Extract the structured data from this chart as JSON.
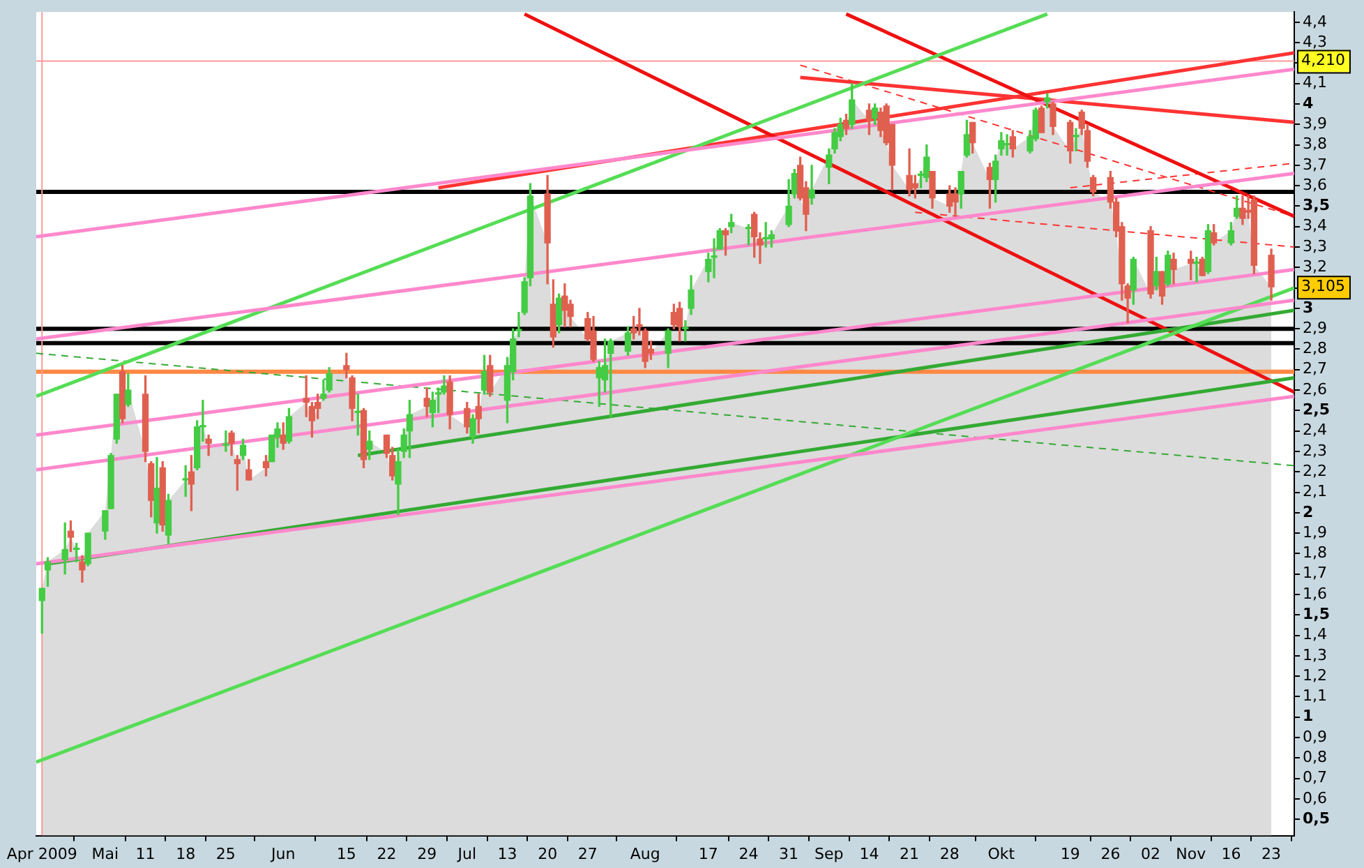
{
  "chart_data": {
    "type": "candlestick",
    "x": [
      "2009-04-23",
      "2009-04-24",
      "2009-04-27",
      "2009-04-28",
      "2009-04-29",
      "2009-04-30",
      "2009-05-01",
      "2009-05-04",
      "2009-05-05",
      "2009-05-06",
      "2009-05-07",
      "2009-05-08",
      "2009-05-11",
      "2009-05-12",
      "2009-05-13",
      "2009-05-14",
      "2009-05-15",
      "2009-05-18",
      "2009-05-19",
      "2009-05-20",
      "2009-05-21",
      "2009-05-22",
      "2009-05-25",
      "2009-05-26",
      "2009-05-27",
      "2009-05-28",
      "2009-05-29",
      "2009-06-01",
      "2009-06-02",
      "2009-06-03",
      "2009-06-04",
      "2009-06-05",
      "2009-06-08",
      "2009-06-09",
      "2009-06-10",
      "2009-06-11",
      "2009-06-12",
      "2009-06-15",
      "2009-06-16",
      "2009-06-17",
      "2009-06-18",
      "2009-06-19",
      "2009-06-22",
      "2009-06-23",
      "2009-06-24",
      "2009-06-25",
      "2009-06-26",
      "2009-06-29",
      "2009-06-30",
      "2009-07-01",
      "2009-07-02",
      "2009-07-03",
      "2009-07-06",
      "2009-07-07",
      "2009-07-08",
      "2009-07-09",
      "2009-07-10",
      "2009-07-13",
      "2009-07-14",
      "2009-07-15",
      "2009-07-16",
      "2009-07-17",
      "2009-07-20",
      "2009-07-21",
      "2009-07-22",
      "2009-07-23",
      "2009-07-24",
      "2009-07-27",
      "2009-07-28",
      "2009-07-29",
      "2009-07-30",
      "2009-07-31",
      "2009-08-03",
      "2009-08-04",
      "2009-08-05",
      "2009-08-06",
      "2009-08-07",
      "2009-08-10",
      "2009-08-11",
      "2009-08-12",
      "2009-08-13",
      "2009-08-14",
      "2009-08-17",
      "2009-08-18",
      "2009-08-19",
      "2009-08-20",
      "2009-08-21",
      "2009-08-24",
      "2009-08-25",
      "2009-08-26",
      "2009-08-27",
      "2009-08-28",
      "2009-08-31",
      "2009-09-01",
      "2009-09-02",
      "2009-09-03",
      "2009-09-04",
      "2009-09-07",
      "2009-09-08",
      "2009-09-09",
      "2009-09-10",
      "2009-09-11",
      "2009-09-14",
      "2009-09-15",
      "2009-09-16",
      "2009-09-17",
      "2009-09-18",
      "2009-09-21",
      "2009-09-22",
      "2009-09-23",
      "2009-09-24",
      "2009-09-25",
      "2009-09-28",
      "2009-09-29",
      "2009-09-30",
      "2009-10-01",
      "2009-10-02",
      "2009-10-05",
      "2009-10-06",
      "2009-10-07",
      "2009-10-08",
      "2009-10-09",
      "2009-10-12",
      "2009-10-13",
      "2009-10-14",
      "2009-10-15",
      "2009-10-16",
      "2009-10-19",
      "2009-10-20",
      "2009-10-21",
      "2009-10-22",
      "2009-10-23",
      "2009-10-26",
      "2009-10-27",
      "2009-10-28",
      "2009-10-29",
      "2009-10-30",
      "2009-11-02",
      "2009-11-03",
      "2009-11-04",
      "2009-11-05",
      "2009-11-06",
      "2009-11-09",
      "2009-11-10",
      "2009-11-11",
      "2009-11-12",
      "2009-11-13",
      "2009-11-16",
      "2009-11-17",
      "2009-11-18",
      "2009-11-19",
      "2009-11-20",
      "2009-11-23"
    ],
    "ohlc": [
      [
        1.57,
        1.63,
        1.41,
        1.63
      ],
      [
        1.72,
        1.78,
        1.64,
        1.76
      ],
      [
        1.77,
        1.95,
        1.7,
        1.82
      ],
      [
        1.91,
        1.96,
        1.81,
        1.88
      ],
      [
        1.82,
        1.85,
        1.76,
        1.82
      ],
      [
        1.76,
        1.79,
        1.66,
        1.72
      ],
      [
        1.75,
        1.9,
        1.74,
        1.9
      ],
      [
        1.91,
        2.01,
        1.87,
        2.01
      ],
      [
        2.02,
        2.29,
        2.02,
        2.28
      ],
      [
        2.36,
        2.58,
        2.34,
        2.58
      ],
      [
        2.69,
        2.72,
        2.44,
        2.46
      ],
      [
        2.53,
        2.68,
        2.52,
        2.6
      ],
      [
        2.58,
        2.67,
        2.25,
        2.3
      ],
      [
        2.24,
        2.25,
        1.98,
        2.06
      ],
      [
        1.95,
        2.27,
        1.9,
        2.12
      ],
      [
        2.22,
        2.25,
        1.91,
        1.94
      ],
      [
        1.89,
        2.09,
        1.85,
        2.06
      ],
      [
        2.16,
        2.23,
        2.08,
        2.16
      ],
      [
        2.2,
        2.28,
        2.01,
        2.14
      ],
      [
        2.22,
        2.45,
        2.21,
        2.42
      ],
      [
        2.42,
        2.55,
        2.35,
        2.42
      ],
      [
        2.36,
        2.38,
        2.28,
        2.34
      ],
      [
        2.33,
        2.4,
        2.3,
        2.33
      ],
      [
        2.39,
        2.4,
        2.28,
        2.34
      ],
      [
        2.26,
        2.28,
        2.11,
        2.24
      ],
      [
        2.28,
        2.36,
        2.26,
        2.33
      ],
      [
        2.21,
        2.26,
        2.16,
        2.16
      ],
      [
        2.25,
        2.28,
        2.18,
        2.22
      ],
      [
        2.25,
        2.38,
        2.25,
        2.38
      ],
      [
        2.37,
        2.44,
        2.32,
        2.41
      ],
      [
        2.38,
        2.44,
        2.31,
        2.34
      ],
      [
        2.35,
        2.51,
        2.34,
        2.47
      ],
      [
        2.56,
        2.67,
        2.47,
        2.54
      ],
      [
        2.52,
        2.54,
        2.37,
        2.45
      ],
      [
        2.54,
        2.58,
        2.46,
        2.51
      ],
      [
        2.56,
        2.65,
        2.55,
        2.58
      ],
      [
        2.6,
        2.71,
        2.59,
        2.68
      ],
      [
        2.72,
        2.78,
        2.66,
        2.7
      ],
      [
        2.66,
        2.67,
        2.45,
        2.51
      ],
      [
        2.49,
        2.58,
        2.38,
        2.49
      ],
      [
        2.5,
        2.51,
        2.22,
        2.26
      ],
      [
        2.31,
        2.4,
        2.26,
        2.35
      ],
      [
        2.38,
        2.38,
        2.27,
        2.29
      ],
      [
        2.28,
        2.32,
        2.16,
        2.18
      ],
      [
        2.14,
        2.31,
        1.99,
        2.25
      ],
      [
        2.3,
        2.41,
        2.27,
        2.38
      ],
      [
        2.4,
        2.55,
        2.27,
        2.48
      ],
      [
        2.56,
        2.61,
        2.47,
        2.52
      ],
      [
        2.49,
        2.59,
        2.42,
        2.55
      ],
      [
        2.58,
        2.61,
        2.49,
        2.58
      ],
      [
        2.59,
        2.67,
        2.58,
        2.62
      ],
      [
        2.64,
        2.67,
        2.41,
        2.48
      ],
      [
        2.51,
        2.54,
        2.39,
        2.42
      ],
      [
        2.37,
        2.48,
        2.34,
        2.46
      ],
      [
        2.52,
        2.58,
        2.39,
        2.46
      ],
      [
        2.6,
        2.77,
        2.58,
        2.69
      ],
      [
        2.72,
        2.77,
        2.57,
        2.59
      ],
      [
        2.55,
        2.76,
        2.44,
        2.72
      ],
      [
        2.69,
        2.9,
        2.65,
        2.85
      ],
      [
        2.89,
        2.98,
        2.86,
        2.89
      ],
      [
        2.98,
        3.15,
        2.97,
        3.13
      ],
      [
        3.15,
        3.61,
        3.11,
        3.55
      ],
      [
        3.56,
        3.65,
        3.12,
        3.32
      ],
      [
        3.02,
        3.14,
        2.81,
        2.86
      ],
      [
        2.92,
        3.07,
        2.88,
        3.05
      ],
      [
        3.06,
        3.12,
        2.91,
        2.99
      ],
      [
        3.02,
        3.04,
        2.91,
        2.96
      ],
      [
        2.95,
        2.98,
        2.84,
        2.85
      ],
      [
        2.89,
        2.96,
        2.74,
        2.75
      ],
      [
        2.66,
        2.74,
        2.52,
        2.71
      ],
      [
        2.65,
        2.85,
        2.59,
        2.72
      ],
      [
        2.78,
        2.85,
        2.47,
        2.84
      ],
      [
        2.79,
        2.91,
        2.77,
        2.88
      ],
      [
        2.9,
        2.96,
        2.85,
        2.88
      ],
      [
        2.92,
        3.0,
        2.87,
        2.91
      ],
      [
        2.89,
        2.9,
        2.71,
        2.74
      ],
      [
        2.8,
        2.84,
        2.75,
        2.78
      ],
      [
        2.78,
        2.9,
        2.71,
        2.89
      ],
      [
        2.98,
        3.02,
        2.9,
        2.92
      ],
      [
        3.0,
        3.03,
        2.84,
        2.91
      ],
      [
        2.9,
        2.94,
        2.84,
        2.9
      ],
      [
        3.0,
        3.16,
        2.97,
        3.09
      ],
      [
        3.18,
        3.27,
        3.13,
        3.24
      ],
      [
        3.25,
        3.34,
        3.15,
        3.25
      ],
      [
        3.29,
        3.39,
        3.29,
        3.38
      ],
      [
        3.38,
        3.39,
        3.26,
        3.36
      ],
      [
        3.4,
        3.46,
        3.37,
        3.42
      ],
      [
        3.39,
        3.41,
        3.31,
        3.39
      ],
      [
        3.46,
        3.47,
        3.25,
        3.35
      ],
      [
        3.34,
        3.37,
        3.22,
        3.31
      ],
      [
        3.34,
        3.42,
        3.3,
        3.34
      ],
      [
        3.34,
        3.38,
        3.3,
        3.36
      ],
      [
        3.41,
        3.63,
        3.4,
        3.5
      ],
      [
        3.56,
        3.68,
        3.54,
        3.66
      ],
      [
        3.7,
        3.74,
        3.53,
        3.54
      ],
      [
        3.59,
        3.62,
        3.38,
        3.46
      ],
      [
        3.54,
        3.7,
        3.51,
        3.58
      ],
      [
        3.69,
        3.78,
        3.61,
        3.75
      ],
      [
        3.78,
        3.88,
        3.76,
        3.86
      ],
      [
        3.84,
        3.93,
        3.82,
        3.9
      ],
      [
        3.92,
        3.95,
        3.85,
        3.88
      ],
      [
        3.9,
        4.1,
        3.88,
        4.02
      ],
      [
        3.97,
        4.0,
        3.85,
        3.92
      ],
      [
        3.93,
        4.0,
        3.9,
        3.98
      ],
      [
        3.96,
        3.98,
        3.84,
        3.87
      ],
      [
        3.99,
        4.0,
        3.8,
        3.81
      ],
      [
        3.9,
        3.9,
        3.58,
        3.7
      ],
      [
        3.65,
        3.78,
        3.55,
        3.58
      ],
      [
        3.61,
        3.65,
        3.54,
        3.59
      ],
      [
        3.65,
        3.67,
        3.59,
        3.65
      ],
      [
        3.64,
        3.8,
        3.62,
        3.74
      ],
      [
        3.67,
        3.67,
        3.49,
        3.54
      ],
      [
        3.56,
        3.6,
        3.47,
        3.5
      ],
      [
        3.56,
        3.59,
        3.45,
        3.52
      ],
      [
        3.56,
        3.67,
        3.49,
        3.67
      ],
      [
        3.75,
        3.92,
        3.74,
        3.85
      ],
      [
        3.91,
        3.91,
        3.76,
        3.81
      ],
      [
        3.69,
        3.71,
        3.49,
        3.63
      ],
      [
        3.63,
        3.75,
        3.52,
        3.72
      ],
      [
        3.78,
        3.86,
        3.75,
        3.82
      ],
      [
        3.8,
        3.85,
        3.75,
        3.8
      ],
      [
        3.84,
        3.87,
        3.74,
        3.78
      ],
      [
        3.77,
        3.87,
        3.76,
        3.84
      ],
      [
        3.83,
        3.98,
        3.82,
        3.97
      ],
      [
        3.98,
        3.99,
        3.86,
        3.86
      ],
      [
        4.01,
        4.05,
        3.98,
        4.03
      ],
      [
        4.0,
        4.01,
        3.85,
        3.89
      ],
      [
        3.91,
        3.92,
        3.71,
        3.77
      ],
      [
        3.84,
        3.88,
        3.77,
        3.84
      ],
      [
        3.96,
        3.97,
        3.85,
        3.88
      ],
      [
        3.87,
        3.9,
        3.69,
        3.72
      ],
      [
        3.64,
        3.65,
        3.55,
        3.57
      ],
      [
        3.64,
        3.67,
        3.49,
        3.52
      ],
      [
        3.52,
        3.54,
        3.35,
        3.38
      ],
      [
        3.4,
        3.42,
        3.04,
        3.12
      ],
      [
        3.11,
        3.12,
        2.93,
        3.05
      ],
      [
        3.09,
        3.25,
        3.02,
        3.24
      ],
      [
        3.38,
        3.4,
        3.05,
        3.07
      ],
      [
        3.11,
        3.25,
        3.09,
        3.18
      ],
      [
        3.18,
        3.18,
        3.02,
        3.06
      ],
      [
        3.12,
        3.28,
        3.11,
        3.26
      ],
      [
        3.24,
        3.27,
        3.12,
        3.19
      ],
      [
        3.24,
        3.28,
        3.14,
        3.22
      ],
      [
        3.22,
        3.25,
        3.13,
        3.22
      ],
      [
        3.24,
        3.25,
        3.16,
        3.16
      ],
      [
        3.18,
        3.41,
        3.17,
        3.38
      ],
      [
        3.37,
        3.41,
        3.31,
        3.32
      ],
      [
        3.32,
        3.42,
        3.31,
        3.38
      ],
      [
        3.45,
        3.55,
        3.44,
        3.49
      ],
      [
        3.49,
        3.55,
        3.41,
        3.44
      ],
      [
        3.48,
        3.55,
        3.44,
        3.47
      ],
      [
        3.53,
        3.55,
        3.17,
        3.21
      ],
      [
        3.26,
        3.29,
        3.04,
        3.105
      ]
    ],
    "colors": [
      "#44cc44",
      "#44cc44",
      "#44cc44",
      "#e06050",
      "#44cc44",
      "#e06050",
      "#44cc44",
      "#44cc44",
      "#44cc44",
      "#44cc44",
      "#e06050",
      "#44cc44",
      "#e06050",
      "#e06050",
      "#44cc44",
      "#e06050",
      "#44cc44",
      "#44cc44",
      "#e06050",
      "#44cc44",
      "#44cc44",
      "#e06050",
      "#44cc44",
      "#e06050",
      "#e06050",
      "#44cc44",
      "#e06050",
      "#e06050",
      "#44cc44",
      "#44cc44",
      "#e06050",
      "#44cc44",
      "#e06050",
      "#e06050",
      "#e06050",
      "#44cc44",
      "#44cc44",
      "#e06050",
      "#e06050",
      "#44cc44",
      "#e06050",
      "#44cc44",
      "#e06050",
      "#e06050",
      "#44cc44",
      "#44cc44",
      "#44cc44",
      "#e06050",
      "#44cc44",
      "#44cc44",
      "#44cc44",
      "#e06050",
      "#e06050",
      "#44cc44",
      "#e06050",
      "#44cc44",
      "#e06050",
      "#44cc44",
      "#44cc44",
      "#44cc44",
      "#44cc44",
      "#44cc44",
      "#e06050",
      "#e06050",
      "#44cc44",
      "#e06050",
      "#e06050",
      "#e06050",
      "#e06050",
      "#44cc44",
      "#44cc44",
      "#44cc44",
      "#44cc44",
      "#e06050",
      "#e06050",
      "#e06050",
      "#e06050",
      "#44cc44",
      "#e06050",
      "#e06050",
      "#44cc44",
      "#44cc44",
      "#44cc44",
      "#44cc44",
      "#44cc44",
      "#e06050",
      "#44cc44",
      "#44cc44",
      "#e06050",
      "#e06050",
      "#44cc44",
      "#44cc44",
      "#44cc44",
      "#44cc44",
      "#e06050",
      "#e06050",
      "#44cc44",
      "#44cc44",
      "#44cc44",
      "#44cc44",
      "#e06050",
      "#44cc44",
      "#e06050",
      "#44cc44",
      "#e06050",
      "#e06050",
      "#e06050",
      "#e06050",
      "#e06050",
      "#44cc44",
      "#44cc44",
      "#e06050",
      "#e06050",
      "#e06050",
      "#44cc44",
      "#44cc44",
      "#e06050",
      "#e06050",
      "#44cc44",
      "#44cc44",
      "#44cc44",
      "#e06050",
      "#44cc44",
      "#44cc44",
      "#e06050",
      "#44cc44",
      "#e06050",
      "#e06050",
      "#44cc44",
      "#e06050",
      "#e06050",
      "#e06050",
      "#e06050",
      "#e06050",
      "#e06050",
      "#e06050",
      "#44cc44",
      "#e06050",
      "#44cc44",
      "#e06050",
      "#44cc44",
      "#e06050",
      "#e06050",
      "#44cc44",
      "#e06050",
      "#44cc44",
      "#e06050",
      "#44cc44",
      "#44cc44",
      "#e06050",
      "#e06050",
      "#e06050",
      "#e06050"
    ],
    "series": [
      {
        "type": "area",
        "color": "#dcdcdc",
        "values": [
          1.63,
          1.76,
          1.82,
          1.88,
          1.82,
          1.72,
          1.9,
          2.01,
          2.28,
          2.58,
          2.46,
          2.6,
          2.3,
          2.06,
          2.12,
          1.94,
          2.06,
          2.16,
          2.14,
          2.42,
          2.42,
          2.34,
          2.33,
          2.34,
          2.24,
          2.33,
          2.16,
          2.22,
          2.38,
          2.41,
          2.34,
          2.47,
          2.54,
          2.45,
          2.51,
          2.58,
          2.68,
          2.7,
          2.51,
          2.49,
          2.26,
          2.35,
          2.29,
          2.18,
          2.25,
          2.38,
          2.48,
          2.52,
          2.55,
          2.58,
          2.62,
          2.48,
          2.42,
          2.46,
          2.46,
          2.69,
          2.59,
          2.72,
          2.85,
          2.89,
          3.13,
          3.55,
          3.32,
          2.86,
          3.05,
          2.99,
          2.96,
          2.85,
          2.75,
          2.71,
          2.72,
          2.84,
          2.88,
          2.88,
          2.91,
          2.74,
          2.78,
          2.89,
          2.92,
          2.91,
          2.9,
          3.09,
          3.24,
          3.25,
          3.38,
          3.36,
          3.42,
          3.39,
          3.35,
          3.31,
          3.34,
          3.36,
          3.5,
          3.66,
          3.54,
          3.46,
          3.58,
          3.75,
          3.86,
          3.9,
          3.88,
          4.02,
          3.92,
          3.98,
          3.87,
          3.81,
          3.7,
          3.58,
          3.59,
          3.65,
          3.74,
          3.54,
          3.5,
          3.52,
          3.67,
          3.85,
          3.81,
          3.63,
          3.72,
          3.82,
          3.8,
          3.78,
          3.84,
          3.97,
          3.86,
          4.03,
          3.89,
          3.77,
          3.84,
          3.88,
          3.72,
          3.57,
          3.52,
          3.38,
          3.12,
          3.05,
          3.24,
          3.07,
          3.18,
          3.06,
          3.26,
          3.19,
          3.22,
          3.22,
          3.16,
          3.38,
          3.32,
          3.38,
          3.49,
          3.44,
          3.47,
          3.21,
          3.105
        ]
      },
      {
        "type": "line",
        "color": "#ff88cc",
        "x": [
          "2009-04-22",
          "2009-11-27"
        ],
        "values": [
          3.35,
          4.17
        ]
      },
      {
        "type": "line",
        "color": "#ff88cc",
        "x": [
          "2009-04-22",
          "2009-11-27"
        ],
        "values": [
          2.38,
          3.19
        ]
      },
      {
        "type": "line",
        "color": "#ff88cc",
        "x": [
          "2009-04-22",
          "2009-11-27"
        ],
        "values": [
          2.21,
          3.04
        ]
      },
      {
        "type": "line",
        "color": "#ff88cc",
        "x": [
          "2009-04-22",
          "2009-11-27"
        ],
        "values": [
          1.75,
          2.57
        ]
      },
      {
        "type": "line",
        "color": "#ff88cc",
        "x": [
          "2009-04-22",
          "2009-11-27"
        ],
        "values": [
          2.85,
          3.66
        ]
      },
      {
        "type": "line",
        "color": "#55dd55",
        "x": [
          "2009-04-22",
          "2009-10-15"
        ],
        "values": [
          2.57,
          4.44
        ]
      },
      {
        "type": "line",
        "color": "#55dd55",
        "x": [
          "2009-04-22",
          "2009-11-27"
        ],
        "values": [
          0.78,
          3.1
        ]
      },
      {
        "type": "line",
        "color": "#33aa33",
        "x": [
          "2009-04-24",
          "2009-11-27"
        ],
        "values": [
          1.75,
          2.66
        ]
      },
      {
        "type": "line",
        "color": "#33aa33",
        "x": [
          "2009-06-17",
          "2009-11-27"
        ],
        "values": [
          2.28,
          2.99
        ]
      },
      {
        "type": "line",
        "color": "#33aa33",
        "line_style": "dashed",
        "x": [
          "2009-04-22",
          "2009-11-27"
        ],
        "values": [
          2.78,
          2.23
        ]
      },
      {
        "type": "line",
        "color": "#ee1111",
        "x": [
          "2009-07-16",
          "2009-11-27"
        ],
        "values": [
          4.44,
          2.59
        ]
      },
      {
        "type": "line",
        "color": "#ee1111",
        "x": [
          "2009-09-10",
          "2009-11-27"
        ],
        "values": [
          4.44,
          3.45
        ]
      },
      {
        "type": "line",
        "color": "#ff3333",
        "x": [
          "2009-07-01",
          "2009-11-27"
        ],
        "values": [
          3.59,
          4.25
        ]
      },
      {
        "type": "line",
        "color": "#ff3333",
        "x": [
          "2009-09-02",
          "2009-11-27"
        ],
        "values": [
          4.13,
          3.91
        ]
      },
      {
        "type": "line",
        "color": "#ff3333",
        "line_style": "dashed",
        "x": [
          "2009-09-02",
          "2009-11-27"
        ],
        "values": [
          4.19,
          3.45
        ]
      },
      {
        "type": "line",
        "color": "#ff3333",
        "line_style": "dashed",
        "x": [
          "2009-09-22",
          "2009-11-27"
        ],
        "values": [
          3.47,
          3.3
        ]
      },
      {
        "type": "line",
        "color": "#ff3333",
        "line_style": "dashed",
        "x": [
          "2009-10-19",
          "2009-11-27"
        ],
        "values": [
          3.59,
          3.71
        ]
      }
    ],
    "ref_lines": [
      {
        "axis": "y",
        "value": 3.57,
        "color": "#000000"
      },
      {
        "axis": "y",
        "value": 2.9,
        "color": "#000000"
      },
      {
        "axis": "y",
        "value": 2.83,
        "color": "#000000"
      },
      {
        "axis": "y",
        "value": 2.69,
        "color": "#ff8844"
      },
      {
        "axis": "y",
        "value": 4.21,
        "label": "4,210",
        "color": "#ff9999"
      },
      {
        "axis": "x",
        "value": "2009-04-23",
        "color": "#ff9999"
      }
    ],
    "annotations": [
      {
        "text": "3,105",
        "x": "2009-11-23",
        "y": 3.105
      }
    ],
    "xlim": [
      "2009-04-22",
      "2009-11-27"
    ],
    "xticks": [
      {
        "value": "2009-04-23",
        "label": "Apr 2009"
      },
      {
        "value": "2009-05-04",
        "label": "Mai"
      },
      {
        "value": "2009-05-11",
        "label": "11"
      },
      {
        "value": "2009-05-18",
        "label": "18"
      },
      {
        "value": "2009-05-25",
        "label": "25"
      },
      {
        "value": "2009-06-04",
        "label": "Jun"
      },
      {
        "value": "2009-06-15",
        "label": "15"
      },
      {
        "value": "2009-06-22",
        "label": "22"
      },
      {
        "value": "2009-06-29",
        "label": "29"
      },
      {
        "value": "2009-07-06",
        "label": "Jul"
      },
      {
        "value": "2009-07-13",
        "label": "13"
      },
      {
        "value": "2009-07-20",
        "label": "20"
      },
      {
        "value": "2009-07-27",
        "label": "27"
      },
      {
        "value": "2009-08-06",
        "label": "Aug"
      },
      {
        "value": "2009-08-17",
        "label": "17"
      },
      {
        "value": "2009-08-24",
        "label": "24"
      },
      {
        "value": "2009-08-31",
        "label": "31"
      },
      {
        "value": "2009-09-07",
        "label": "Sep"
      },
      {
        "value": "2009-09-14",
        "label": "14"
      },
      {
        "value": "2009-09-21",
        "label": "21"
      },
      {
        "value": "2009-09-28",
        "label": "28"
      },
      {
        "value": "2009-10-07",
        "label": "Okt"
      },
      {
        "value": "2009-10-19",
        "label": "19"
      },
      {
        "value": "2009-10-26",
        "label": "26"
      },
      {
        "value": "2009-11-02",
        "label": "02"
      },
      {
        "value": "2009-11-09",
        "label": "Nov"
      },
      {
        "value": "2009-11-16",
        "label": "16"
      },
      {
        "value": "2009-11-23",
        "label": "23"
      }
    ],
    "ylim": [
      0.42,
      4.45
    ],
    "yticks": [
      {
        "value": 0.5,
        "label": "0,5"
      },
      {
        "value": 0.6,
        "label": "0,6"
      },
      {
        "value": 0.7,
        "label": "0,7"
      },
      {
        "value": 0.8,
        "label": "0,8"
      },
      {
        "value": 0.9,
        "label": "0,9"
      },
      1,
      {
        "value": 1.1,
        "label": "1,1"
      },
      {
        "value": 1.2,
        "label": "1,2"
      },
      {
        "value": 1.3,
        "label": "1,3"
      },
      {
        "value": 1.4,
        "label": "1,4"
      },
      {
        "value": 1.5,
        "label": "1,5"
      },
      {
        "value": 1.6,
        "label": "1,6"
      },
      {
        "value": 1.7,
        "label": "1,7"
      },
      {
        "value": 1.8,
        "label": "1,8"
      },
      {
        "value": 1.9,
        "label": "1,9"
      },
      2,
      {
        "value": 2.1,
        "label": "2,1"
      },
      {
        "value": 2.2,
        "label": "2,2"
      },
      {
        "value": 2.3,
        "label": "2,3"
      },
      {
        "value": 2.4,
        "label": "2,4"
      },
      {
        "value": 2.5,
        "label": "2,5"
      },
      {
        "value": 2.6,
        "label": "2,6"
      },
      {
        "value": 2.7,
        "label": "2,7"
      },
      {
        "value": 2.8,
        "label": "2,8"
      },
      {
        "value": 2.9,
        "label": "2,9"
      },
      3,
      {
        "value": 3.1,
        "label": null
      },
      {
        "value": 3.2,
        "label": "3,2"
      },
      {
        "value": 3.3,
        "label": "3,3"
      },
      {
        "value": 3.4,
        "label": "3,4"
      },
      {
        "value": 3.5,
        "label": "3,5"
      },
      {
        "value": 3.6,
        "label": "3,6"
      },
      {
        "value": 3.7,
        "label": "3,7"
      },
      {
        "value": 3.8,
        "label": "3,8"
      },
      {
        "value": 3.9,
        "label": "3,9"
      },
      4,
      {
        "value": 4.1,
        "label": "4,1"
      },
      {
        "value": 4.2,
        "label": null
      },
      {
        "value": 4.3,
        "label": "4,3"
      },
      {
        "value": 4.4,
        "label": "4,4"
      }
    ]
  }
}
